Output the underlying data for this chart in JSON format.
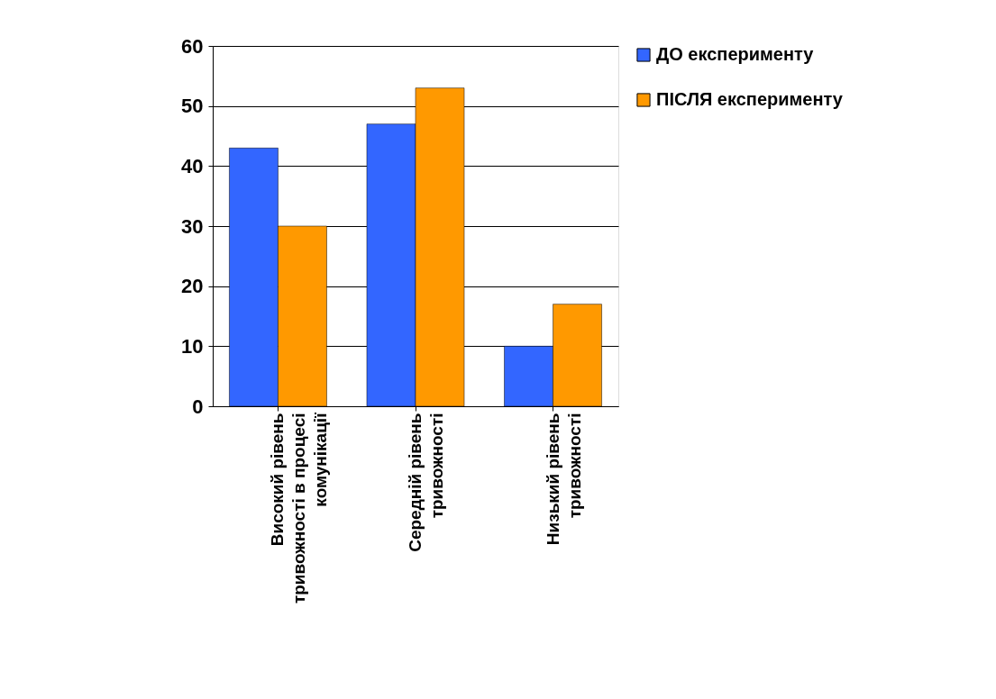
{
  "chart_data": {
    "type": "bar",
    "categories": [
      "Високий рівень тривожності в процесі комунікації",
      "Середній рівень тривожності",
      "Низький рівень тривожності",
      null
    ],
    "series": [
      {
        "name": "ДО експерименту",
        "color": "#3366ff",
        "values": [
          43,
          47,
          10,
          null
        ]
      },
      {
        "name": "ПІСЛЯ експерименту",
        "color": "#ff9900",
        "values": [
          30,
          53,
          17,
          null
        ]
      }
    ],
    "ylim": [
      0,
      60
    ],
    "yticks": [
      0,
      10,
      20,
      30,
      40,
      50,
      60
    ],
    "grid": "y",
    "legend": "right"
  }
}
